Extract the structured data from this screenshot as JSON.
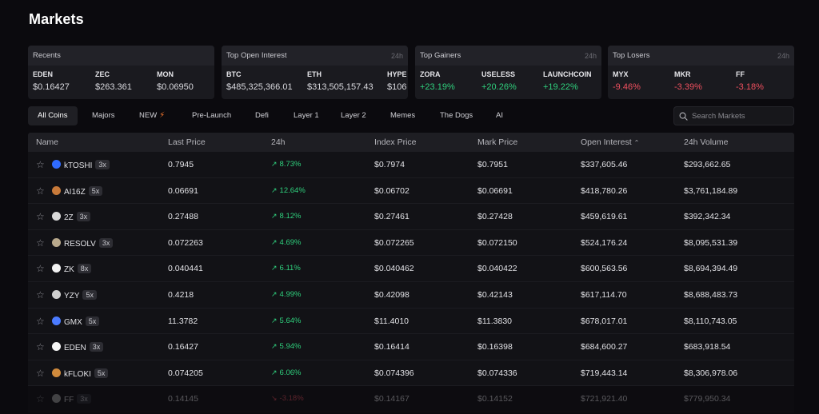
{
  "page": {
    "title": "Markets"
  },
  "cards": {
    "recents": {
      "title": "Recents",
      "badge": "",
      "items": [
        {
          "symbol": "EDEN",
          "value": "$0.16427"
        },
        {
          "symbol": "ZEC",
          "value": "$263.361"
        },
        {
          "symbol": "MON",
          "value": "$0.06950"
        }
      ]
    },
    "open_interest": {
      "title": "Top Open Interest",
      "badge": "24h",
      "items": [
        {
          "symbol": "BTC",
          "value": "$485,325,366.01"
        },
        {
          "symbol": "ETH",
          "value": "$313,505,157.43"
        },
        {
          "symbol": "HYPE",
          "value": "$106"
        }
      ]
    },
    "gainers": {
      "title": "Top Gainers",
      "badge": "24h",
      "items": [
        {
          "symbol": "ZORA",
          "value": "+23.19%"
        },
        {
          "symbol": "USELESS",
          "value": "+20.26%"
        },
        {
          "symbol": "LAUNCHCOIN",
          "value": "+19.22%"
        }
      ]
    },
    "losers": {
      "title": "Top Losers",
      "badge": "24h",
      "items": [
        {
          "symbol": "MYX",
          "value": "-9.46%"
        },
        {
          "symbol": "MKR",
          "value": "-3.39%"
        },
        {
          "symbol": "FF",
          "value": "-3.18%"
        }
      ]
    }
  },
  "tabs": [
    {
      "label": "All Coins",
      "active": true
    },
    {
      "label": "Majors"
    },
    {
      "label": "NEW",
      "icon": "lightning-icon"
    },
    {
      "label": "Pre-Launch"
    },
    {
      "label": "Defi"
    },
    {
      "label": "Layer 1"
    },
    {
      "label": "Layer 2"
    },
    {
      "label": "Memes"
    },
    {
      "label": "The Dogs"
    },
    {
      "label": "AI"
    }
  ],
  "search": {
    "placeholder": "Search Markets",
    "icon": "search-icon"
  },
  "table": {
    "headers": {
      "name": "Name",
      "last_price": "Last Price",
      "change": "24h",
      "index_price": "Index Price",
      "mark_price": "Mark Price",
      "open_interest": "Open Interest",
      "volume": "24h Volume"
    },
    "sort_icon": "chevron-up-icon",
    "rows": [
      {
        "name": "kTOSHI",
        "lev": "3x",
        "icon_color": "#2f6bff",
        "last": "0.7945",
        "chg": "8.73%",
        "dir": "up",
        "index": "$0.7974",
        "mark": "$0.7951",
        "oi": "$337,605.46",
        "vol": "$293,662.65"
      },
      {
        "name": "AI16Z",
        "lev": "5x",
        "icon_color": "#c87a3a",
        "last": "0.06691",
        "chg": "12.64%",
        "dir": "up",
        "index": "$0.06702",
        "mark": "$0.06691",
        "oi": "$418,780.26",
        "vol": "$3,761,184.89"
      },
      {
        "name": "2Z",
        "lev": "3x",
        "icon_color": "#d9d9d9",
        "last": "0.27488",
        "chg": "8.12%",
        "dir": "up",
        "index": "$0.27461",
        "mark": "$0.27428",
        "oi": "$459,619.61",
        "vol": "$392,342.34"
      },
      {
        "name": "RESOLV",
        "lev": "3x",
        "icon_color": "#b9a98c",
        "last": "0.072263",
        "chg": "4.69%",
        "dir": "up",
        "index": "$0.072265",
        "mark": "$0.072150",
        "oi": "$524,176.24",
        "vol": "$8,095,531.39"
      },
      {
        "name": "ZK",
        "lev": "8x",
        "icon_color": "#f2f2f2",
        "last": "0.040441",
        "chg": "6.11%",
        "dir": "up",
        "index": "$0.040462",
        "mark": "$0.040422",
        "oi": "$600,563.56",
        "vol": "$8,694,394.49"
      },
      {
        "name": "YZY",
        "lev": "5x",
        "icon_color": "#cfcfcf",
        "last": "0.4218",
        "chg": "4.99%",
        "dir": "up",
        "index": "$0.42098",
        "mark": "$0.42143",
        "oi": "$617,114.70",
        "vol": "$8,688,483.73"
      },
      {
        "name": "GMX",
        "lev": "5x",
        "icon_color": "#4b7bff",
        "last": "11.3782",
        "chg": "5.64%",
        "dir": "up",
        "index": "$11.4010",
        "mark": "$11.3830",
        "oi": "$678,017.01",
        "vol": "$8,110,743.05"
      },
      {
        "name": "EDEN",
        "lev": "3x",
        "icon_color": "#f5f5f5",
        "last": "0.16427",
        "chg": "5.94%",
        "dir": "up",
        "index": "$0.16414",
        "mark": "$0.16398",
        "oi": "$684,600.27",
        "vol": "$683,918.54"
      },
      {
        "name": "kFLOKI",
        "lev": "5x",
        "icon_color": "#d08a3c",
        "last": "0.074205",
        "chg": "6.06%",
        "dir": "up",
        "index": "$0.074396",
        "mark": "$0.074336",
        "oi": "$719,443.14",
        "vol": "$8,306,978.06"
      },
      {
        "name": "FF",
        "lev": "3x",
        "icon_color": "#aaaaaa",
        "last": "0.14145",
        "chg": "-3.18%",
        "dir": "down",
        "index": "$0.14167",
        "mark": "$0.14152",
        "oi": "$721,921.40",
        "vol": "$779,950.34",
        "faded": true
      }
    ]
  },
  "colors": {
    "up": "#2fd07d",
    "down": "#f0505f",
    "background": "#0b0a0e"
  }
}
